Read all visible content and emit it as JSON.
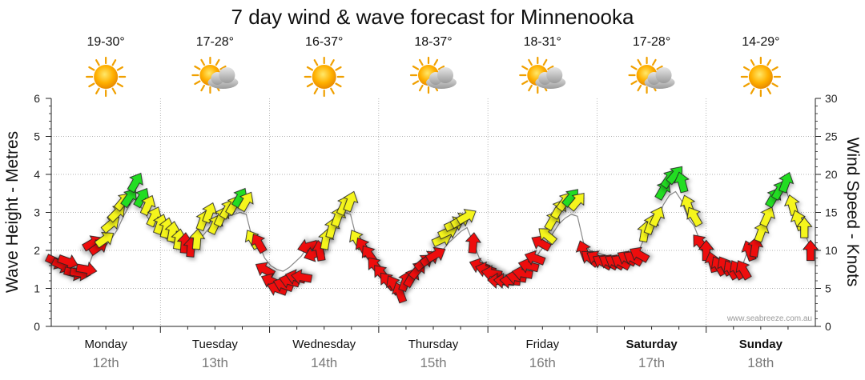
{
  "chart_data": {
    "type": "line",
    "title": "7 day wind & wave forecast for Minnenooka",
    "ylabel_left": "Wave Height - Metres",
    "ylabel_right": "Wind Speed - Knots",
    "ylim_left": [
      0,
      6
    ],
    "ylim_right": [
      0,
      30
    ],
    "yticks_left": [
      "0",
      "1",
      "2",
      "3",
      "4",
      "5",
      "6"
    ],
    "yticks_right": [
      "0",
      "5",
      "10",
      "15",
      "20",
      "25",
      "30"
    ],
    "credit": "www.seabreeze.com.au",
    "grid": true,
    "days": [
      {
        "name": "Monday",
        "date": "12th",
        "temp": "19-30°",
        "weather": "sunny",
        "bold": false
      },
      {
        "name": "Tuesday",
        "date": "13th",
        "temp": "17-28°",
        "weather": "partly-cloudy",
        "bold": false
      },
      {
        "name": "Wednesday",
        "date": "14th",
        "temp": "16-37°",
        "weather": "sunny",
        "bold": false
      },
      {
        "name": "Thursday",
        "date": "15th",
        "temp": "18-37°",
        "weather": "partly-cloudy",
        "bold": false
      },
      {
        "name": "Friday",
        "date": "16th",
        "temp": "18-31°",
        "weather": "partly-cloudy",
        "bold": false
      },
      {
        "name": "Saturday",
        "date": "17th",
        "temp": "17-28°",
        "weather": "partly-cloudy",
        "bold": true
      },
      {
        "name": "Sunday",
        "date": "18th",
        "temp": "14-29°",
        "weather": "sunny",
        "bold": true
      }
    ],
    "colors": {
      "strong": "#ee1111",
      "moderate": "#f5f51e",
      "light": "#22dd22",
      "grid": "#9a9a9a",
      "line": "#888888"
    },
    "series": [
      {
        "name": "Wind Speed",
        "axis": "right",
        "unit": "knots",
        "values": [
          8.5,
          8,
          8.5,
          7,
          7,
          7.5,
          11,
          10.5,
          11.5,
          13.5,
          15,
          16.5,
          17,
          19,
          17,
          16,
          14.5,
          13.5,
          13,
          12.5,
          11.5,
          11,
          10.5,
          11.5,
          14,
          15,
          13.5,
          14.5,
          15.5,
          16,
          17,
          16.5,
          11.5,
          11,
          7.5,
          6,
          5,
          5.5,
          6,
          6.5,
          6.5,
          10.5,
          9.5,
          10,
          11.5,
          13,
          14.5,
          16,
          16.5,
          11.5,
          10.5,
          9.5,
          8,
          7,
          6,
          5.5,
          4.5,
          6,
          6.5,
          7.5,
          8.5,
          9,
          9.5,
          11.5,
          12.5,
          13.5,
          14,
          14.5,
          11,
          8,
          7.5,
          7,
          6,
          6,
          6,
          6.5,
          7,
          8,
          9,
          11,
          12,
          14,
          15.5,
          16.5,
          17,
          16.5,
          10,
          9,
          9,
          8.5,
          8.5,
          8.5,
          8.5,
          9,
          9,
          9.5,
          12.5,
          13.5,
          14.5,
          18,
          19.5,
          20,
          19,
          16,
          14.5,
          11,
          10,
          8.5,
          8,
          8,
          7.5,
          7.5,
          7.5,
          10,
          10.5,
          12.5,
          14.5,
          17,
          18,
          19,
          16,
          14,
          13,
          10
        ]
      },
      {
        "name": "Wave Height",
        "axis": "left",
        "unit": "metres",
        "values": [
          1.7,
          1.65,
          1.6,
          1.55,
          1.5,
          1.45,
          1.9,
          2.0,
          2.1,
          2.3,
          2.55,
          2.9,
          3.2,
          3.4,
          3.1,
          2.85,
          2.65,
          2.45,
          2.3,
          2.2,
          2.15,
          2.1,
          2.1,
          2.2,
          2.4,
          2.6,
          2.65,
          2.8,
          2.9,
          2.95,
          3.0,
          2.95,
          2.3,
          2.2,
          1.8,
          1.6,
          1.5,
          1.45,
          1.55,
          1.7,
          1.85,
          2.1,
          2.0,
          2.1,
          2.3,
          2.55,
          2.8,
          3.0,
          2.95,
          2.3,
          2.05,
          1.85,
          1.65,
          1.5,
          1.35,
          1.25,
          1.15,
          1.2,
          1.3,
          1.45,
          1.6,
          1.7,
          1.8,
          2.0,
          2.2,
          2.35,
          2.5,
          2.6,
          2.2,
          1.8,
          1.6,
          1.5,
          1.4,
          1.35,
          1.35,
          1.4,
          1.5,
          1.6,
          1.75,
          2.0,
          2.2,
          2.45,
          2.7,
          2.85,
          2.95,
          2.9,
          2.2,
          2.0,
          1.95,
          1.9,
          1.85,
          1.85,
          1.85,
          1.9,
          1.95,
          2.0,
          2.35,
          2.55,
          2.75,
          3.2,
          3.45,
          3.55,
          3.3,
          2.85,
          2.65,
          2.25,
          2.0,
          1.8,
          1.7,
          1.65,
          1.6,
          1.6,
          1.65,
          2.1,
          2.2,
          2.5,
          2.85,
          3.25,
          3.5,
          3.6,
          3.1,
          2.75,
          2.45,
          2.1
        ]
      }
    ],
    "wind_direction_deg": [
      115,
      115,
      110,
      105,
      100,
      100,
      60,
      55,
      55,
      50,
      45,
      40,
      35,
      30,
      30,
      25,
      25,
      20,
      15,
      10,
      10,
      5,
      5,
      5,
      20,
      20,
      25,
      25,
      30,
      30,
      30,
      30,
      330,
      330,
      300,
      295,
      290,
      290,
      285,
      285,
      280,
      255,
      250,
      350,
      10,
      15,
      20,
      25,
      20,
      330,
      330,
      325,
      320,
      320,
      320,
      330,
      340,
      20,
      30,
      40,
      50,
      55,
      60,
      65,
      65,
      65,
      60,
      60,
      5,
      290,
      285,
      280,
      275,
      275,
      275,
      280,
      280,
      285,
      290,
      300,
      310,
      30,
      30,
      35,
      40,
      40,
      340,
      310,
      300,
      300,
      300,
      300,
      300,
      300,
      300,
      300,
      10,
      20,
      25,
      30,
      35,
      40,
      345,
      340,
      330,
      320,
      0,
      345,
      330,
      330,
      330,
      330,
      330,
      340,
      10,
      20,
      25,
      30,
      30,
      20,
      345,
      340,
      0
    ]
  }
}
